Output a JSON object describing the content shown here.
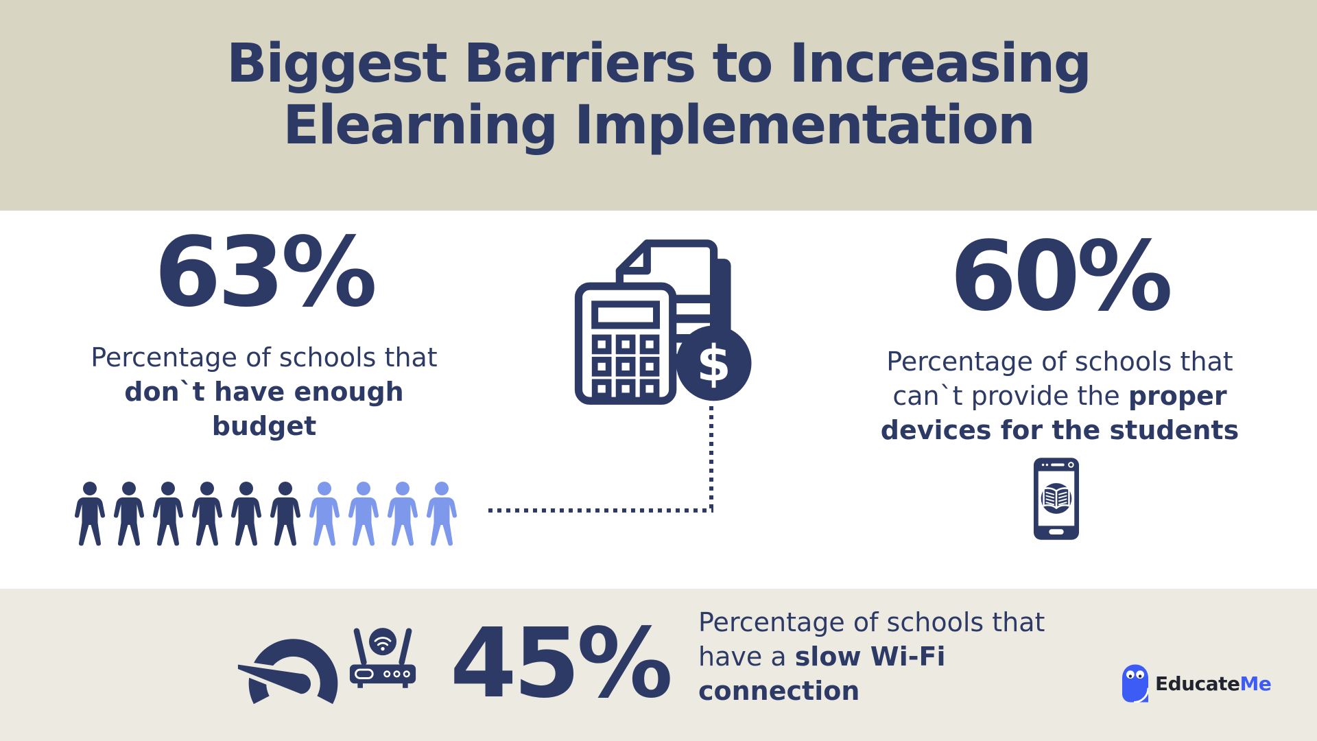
{
  "colors": {
    "navy": "#2d3a66",
    "light_blue": "#7e99ec",
    "top_band_bg": "#d9d5c3",
    "bottom_band_bg": "#edebe1",
    "middle_bg": "#ffffff",
    "logo_blue": "#3d5cf5",
    "logo_dark": "#21242f"
  },
  "title": {
    "line1": "Biggest Barriers to Increasing",
    "line2": "Elearning Implementation"
  },
  "stats": {
    "budget": {
      "value": "63%",
      "desc_normal": "Percentage of schools that ",
      "desc_bold": "don`t have enough budget",
      "pictogram": {
        "dark_count": 6,
        "light_count": 4
      }
    },
    "devices": {
      "value": "60%",
      "desc_normal": "Percentage of schools that can`t provide the ",
      "desc_bold": "proper devices for the students"
    },
    "wifi": {
      "value": "45%",
      "desc_normal": "Percentage of schools that have a ",
      "desc_bold": "slow Wi-Fi connection"
    }
  },
  "icons": {
    "budget": "calculator-documents-dollar-icon",
    "budget_pictogram": "people-pictogram",
    "devices": "smartphone-ebook-icon",
    "wifi": [
      "speedometer-icon",
      "wifi-router-icon"
    ],
    "logo": "owl-icon"
  },
  "logo": {
    "brand_dark": "Educate",
    "brand_accent": "Me"
  },
  "chart_data": {
    "type": "pictogram",
    "title": "Biggest Barriers to Increasing Elearning Implementation",
    "categories": [
      "Don`t have enough budget",
      "Can`t provide the proper devices for the students",
      "Slow Wi-Fi connection"
    ],
    "values": [
      63,
      60,
      45
    ],
    "unit": "%",
    "pictogram_units": {
      "budget": {
        "filled": 6,
        "total": 10
      }
    },
    "legend_position": "none",
    "grid": false
  }
}
